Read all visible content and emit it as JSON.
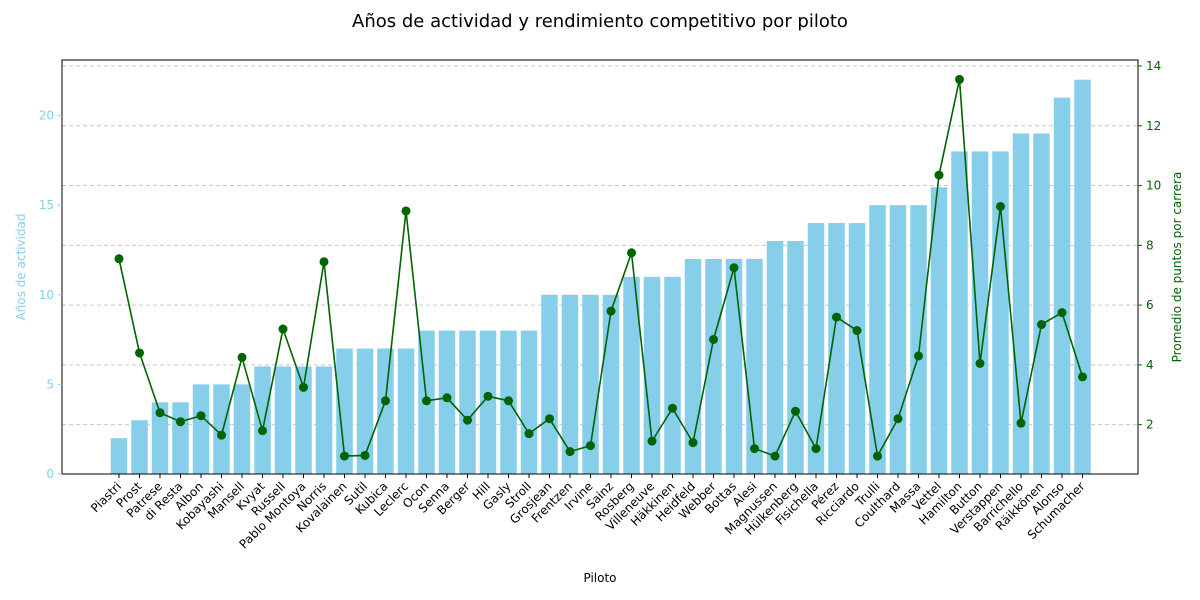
{
  "chart_data": {
    "type": "bar+line",
    "title": "Años de actividad y rendimiento competitivo por piloto",
    "xlabel": "Piloto",
    "ylabel_left": "Años de actividad",
    "ylabel_right": "Promedio de puntos por carrera",
    "ylim_left": [
      0,
      23.1
    ],
    "ylim_right": [
      0.35,
      14.2
    ],
    "yticks_left": [
      0,
      5,
      10,
      15,
      20
    ],
    "yticks_right": [
      2,
      4,
      6,
      8,
      10,
      12,
      14
    ],
    "grid": "horizontal dashed (right axis)",
    "colors": {
      "bars": "#87CEEB",
      "line": "#006400",
      "left_axis": "#87CEEB",
      "right_axis": "#006400",
      "grid": "#c8c8c8"
    },
    "categories": [
      "Piastri",
      "Prost",
      "Patrese",
      "di Resta",
      "Albon",
      "Kobayashi",
      "Mansell",
      "Kvyat",
      "Russell",
      "Pablo Montoya",
      "Norris",
      "Kovalainen",
      "Sutil",
      "Kubica",
      "Leclerc",
      "Ocon",
      "Senna",
      "Berger",
      "Hill",
      "Gasly",
      "Stroll",
      "Grosjean",
      "Frentzen",
      "Irvine",
      "Sainz",
      "Rosberg",
      "Villeneuve",
      "Häkkinen",
      "Heidfeld",
      "Webber",
      "Bottas",
      "Alesi",
      "Magnussen",
      "Hülkenberg",
      "Fisichella",
      "Pérez",
      "Ricciardo",
      "Trulli",
      "Coulthard",
      "Massa",
      "Vettel",
      "Hamilton",
      "Button",
      "Verstappen",
      "Barrichello",
      "Räikkönen",
      "Alonso",
      "Schumacher"
    ],
    "series": [
      {
        "kind": "bar",
        "axis": "left",
        "values": [
          2,
          3,
          4,
          4,
          5,
          5,
          5,
          6,
          6,
          6,
          6,
          7,
          7,
          7,
          7,
          8,
          8,
          8,
          8,
          8,
          8,
          10,
          10,
          10,
          10,
          11,
          11,
          11,
          12,
          12,
          12,
          12,
          13,
          13,
          14,
          14,
          14,
          15,
          15,
          15,
          16,
          18,
          18,
          18,
          19,
          19,
          21,
          22
        ]
      },
      {
        "kind": "line",
        "axis": "right",
        "values": [
          7.55,
          4.4,
          2.4,
          2.1,
          2.3,
          1.65,
          4.25,
          1.8,
          5.2,
          3.25,
          7.45,
          0.95,
          0.97,
          2.8,
          9.15,
          2.8,
          2.9,
          2.15,
          2.95,
          2.8,
          1.7,
          2.2,
          1.1,
          1.3,
          5.8,
          7.75,
          1.45,
          2.55,
          1.4,
          4.85,
          7.25,
          1.2,
          0.95,
          2.45,
          1.2,
          5.6,
          5.15,
          0.95,
          2.2,
          4.3,
          10.35,
          13.55,
          4.05,
          9.3,
          2.05,
          5.35,
          5.75,
          3.6
        ]
      }
    ]
  }
}
